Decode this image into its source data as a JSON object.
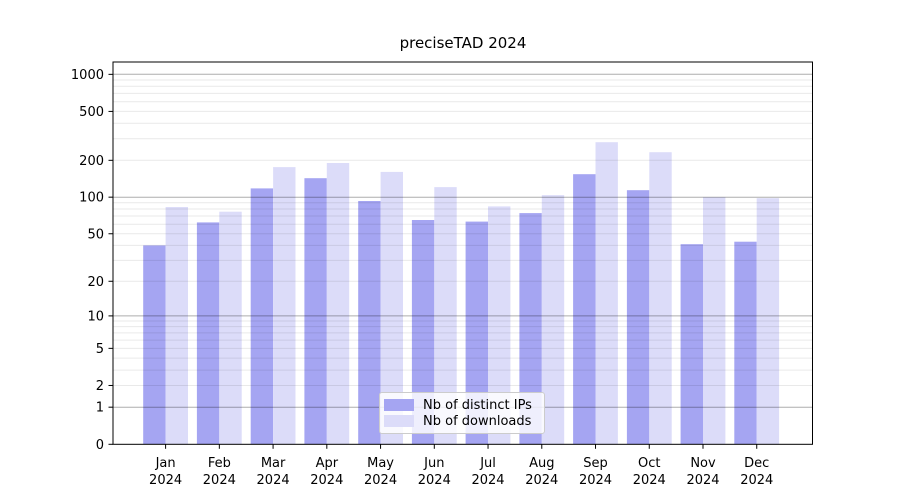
{
  "chart_data": {
    "type": "bar",
    "title": "preciseTAD 2024",
    "year": "2024",
    "categories": [
      "Jan 2024",
      "Feb 2024",
      "Mar 2024",
      "Apr 2024",
      "May 2024",
      "Jun 2024",
      "Jul 2024",
      "Aug 2024",
      "Sep 2024",
      "Oct 2024",
      "Nov 2024",
      "Dec 2024"
    ],
    "series": [
      {
        "name": "Nb of distinct IPs",
        "color": "#a5a5f2",
        "values": [
          40,
          62,
          118,
          143,
          93,
          65,
          63,
          74,
          154,
          114,
          41,
          43
        ]
      },
      {
        "name": "Nb of downloads",
        "color": "#dcdcf9",
        "values": [
          83,
          76,
          176,
          190,
          161,
          121,
          84,
          104,
          281,
          233,
          100,
          98
        ]
      }
    ],
    "xlabel": "",
    "ylabel": "",
    "scale": "log1p",
    "ylim": [
      0,
      1260
    ],
    "y_ticks": [
      0,
      1,
      2,
      5,
      10,
      20,
      50,
      100,
      200,
      500,
      1000
    ],
    "major_grid_values": [
      1,
      10,
      100,
      1000
    ],
    "minor_grid_values": [
      3,
      4,
      6,
      7,
      8,
      9,
      30,
      40,
      60,
      70,
      80,
      90,
      300,
      400,
      600,
      700,
      800,
      900
    ],
    "grid": "on",
    "legend_position": "lower center",
    "axis_color": "#000000"
  }
}
